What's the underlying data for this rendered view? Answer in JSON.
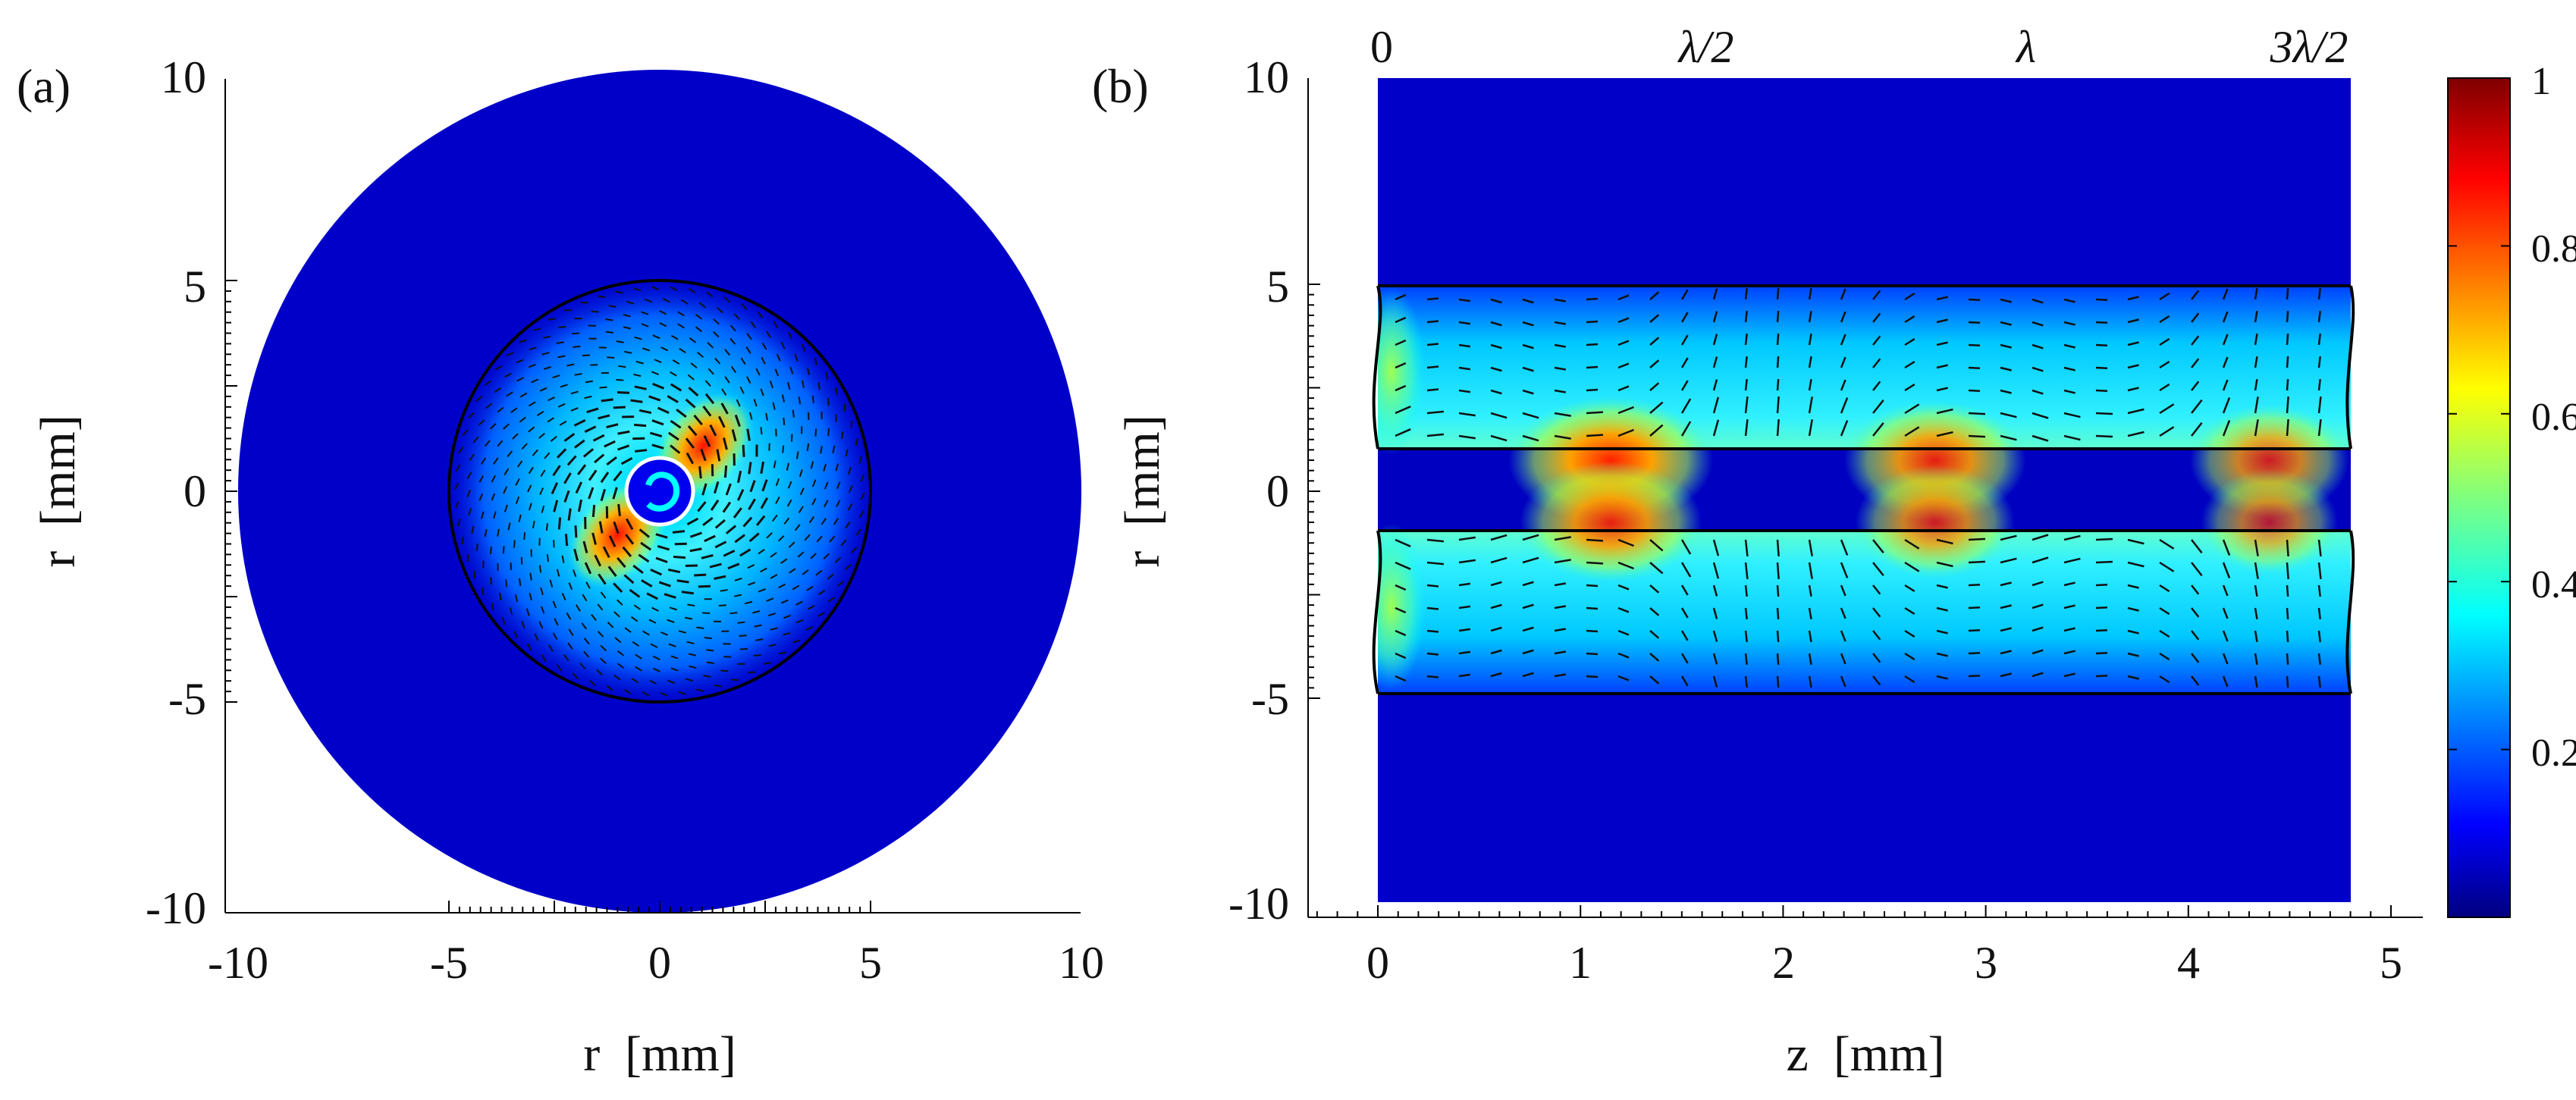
{
  "chart_data": [
    {
      "panel": "a",
      "panel_label": "(a)",
      "type": "heatmap",
      "xlabel": "r  [mm]",
      "ylabel": "r  [mm]",
      "xlim": [
        -10,
        10
      ],
      "ylim": [
        -10,
        10
      ],
      "xticks": [
        -10,
        -5,
        0,
        5,
        10
      ],
      "yticks": [
        10,
        5,
        0,
        -5,
        -10
      ],
      "outer_radius": 10,
      "guide_circle_radius": 5,
      "inner_radius": 1,
      "peak_location": "near inner boundary, spiral around center",
      "vector_field": "swirling arrows between r=1 and r=5"
    },
    {
      "panel": "b",
      "panel_label": "(b)",
      "type": "heatmap",
      "xlabel": "z  [mm]",
      "ylabel": "r  [mm]",
      "xlim": [
        -0.35,
        5.1
      ],
      "ylim": [
        -10.3,
        10.3
      ],
      "xticks": [
        0,
        1,
        2,
        3,
        4,
        5
      ],
      "yticks": [
        10,
        5,
        0,
        -5,
        -10
      ],
      "domain_z": [
        0,
        4.8
      ],
      "domain_r": [
        -10,
        10
      ],
      "boundary_lines_r": [
        5,
        1,
        -1,
        -5
      ],
      "top_labels": [
        "0",
        "λ/2",
        "λ",
        "3λ/2"
      ],
      "top_label_z": [
        0,
        1.6,
        3.2,
        4.8
      ],
      "hot_spots": [
        {
          "z": 1.15,
          "r": 1.2,
          "value": 0.9
        },
        {
          "z": 2.75,
          "r": 1.2,
          "value": 0.8
        },
        {
          "z": 4.4,
          "r": 1.2,
          "value": 0.7
        },
        {
          "z": 1.15,
          "r": -1.2,
          "value": 0.8
        },
        {
          "z": 2.75,
          "r": -1.2,
          "value": 0.7
        },
        {
          "z": 4.4,
          "r": -1.2,
          "value": 0.6
        }
      ]
    }
  ],
  "colorbar": {
    "ticks": [
      "1",
      "0.8",
      "0.6",
      "0.4",
      "0.2"
    ],
    "tick_values": [
      1,
      0.8,
      0.6,
      0.4,
      0.2
    ],
    "range": [
      0,
      1
    ],
    "colormap": "jet"
  }
}
